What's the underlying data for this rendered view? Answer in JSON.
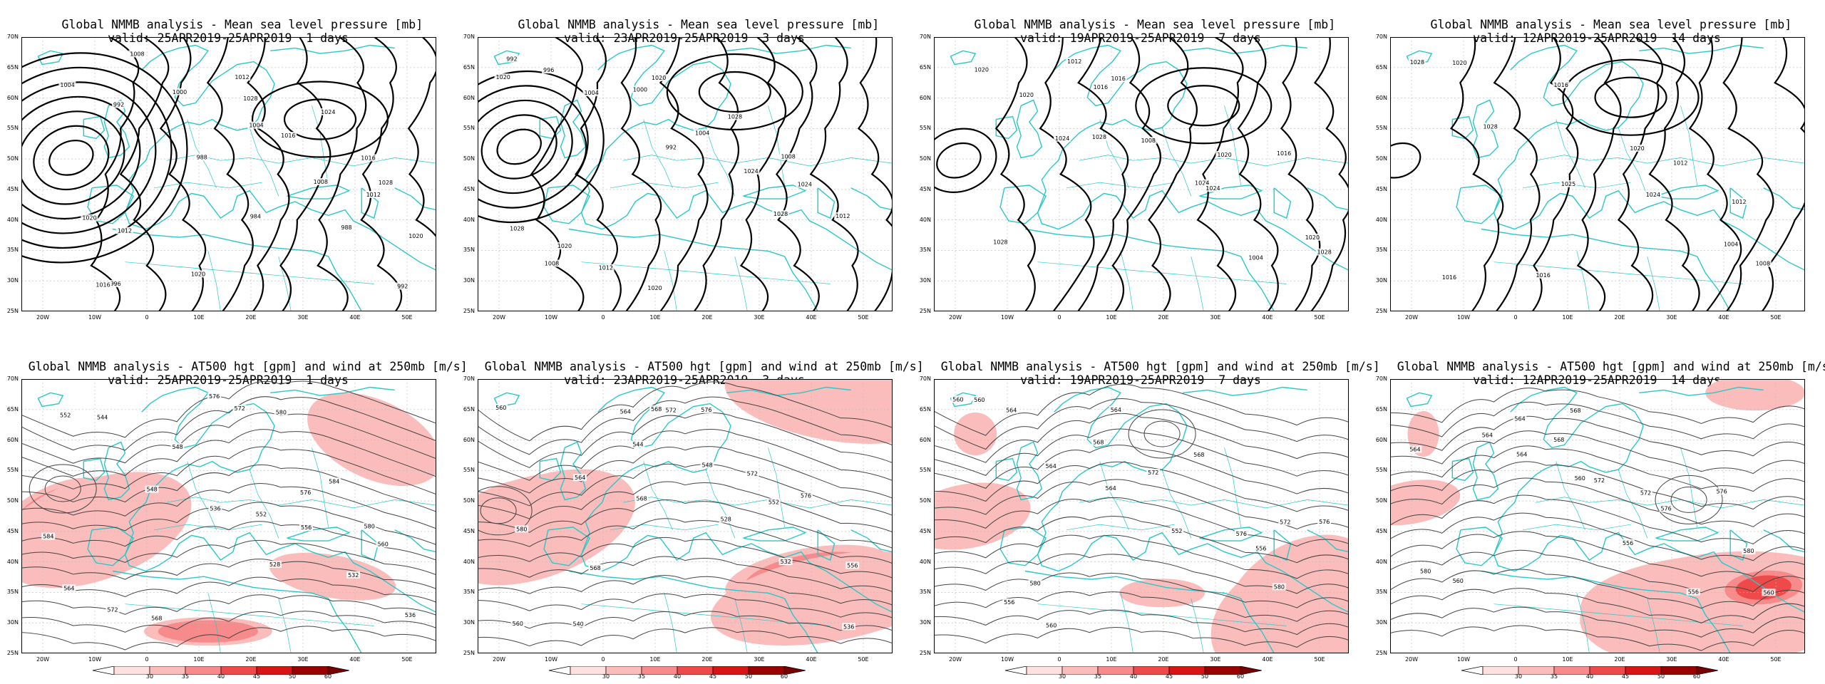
{
  "colors": {
    "coast": "#29c8c8",
    "contour_mslp": "#000000",
    "contour_hgt": "#444444",
    "grid": "#bbbbbb",
    "wind_shades": [
      "#fde0e0",
      "#fbbcbc",
      "#f78a8a",
      "#ef4a4a",
      "#d81515",
      "#990000"
    ]
  },
  "axes": {
    "lat_labels": [
      "70N",
      "65N",
      "60N",
      "55N",
      "50N",
      "45N",
      "40N",
      "35N",
      "30N",
      "25N"
    ],
    "lon_labels": [
      "20W",
      "10W",
      "0",
      "10E",
      "20E",
      "30E",
      "40E",
      "50E"
    ]
  },
  "top_row": [
    {
      "title": "Global NMMB analysis - Mean sea level pressure [mb]",
      "subtitle": "valid: 25APR2019-25APR2019  1 days",
      "contour_labels": [
        "1004",
        "992",
        "988",
        "984",
        "988",
        "992",
        "996",
        "1000",
        "1004",
        "1008",
        "1012",
        "1016",
        "1008",
        "1012",
        "1016",
        "1016",
        "1020",
        "1012",
        "1020",
        "1028",
        "1024",
        "1028",
        "1020"
      ]
    },
    {
      "title": "Global NMMB analysis - Mean sea level pressure [mb]",
      "subtitle": "valid: 23APR2019-25APR2019  3 days",
      "contour_labels": [
        "1020",
        "1004",
        "992",
        "1024",
        "1028",
        "992",
        "996",
        "1000",
        "1004",
        "1008",
        "1012",
        "1008",
        "1012",
        "1020",
        "1028",
        "1024",
        "1028",
        "1020",
        "1020"
      ]
    },
    {
      "title": "Global NMMB analysis - Mean sea level pressure [mb]",
      "subtitle": "valid: 19APR2019-25APR2019  7 days",
      "contour_labels": [
        "1020",
        "1024",
        "1028",
        "1024",
        "1004",
        "1028",
        "1020",
        "1016",
        "1008",
        "1024",
        "1020",
        "1028",
        "1012",
        "1016",
        "1020",
        "1016"
      ]
    },
    {
      "title": "Global NMMB analysis - Mean sea level pressure [mb]",
      "subtitle": "valid: 12APR2019-25APR2019  14 days",
      "contour_labels": [
        "1028",
        "1028",
        "1025",
        "1024",
        "1004",
        "1008",
        "1020",
        "1016",
        "1020",
        "1012",
        "1012",
        "1016",
        "1016"
      ]
    }
  ],
  "bottom_row": [
    {
      "title": "Global NMMB analysis - AT500 hgt [gpm] and wind at 250mb [m/s]",
      "subtitle": "valid: 25APR2019-25APR2019  1 days",
      "contour_labels": [
        "552",
        "548",
        "536",
        "528",
        "532",
        "536",
        "544",
        "548",
        "552",
        "556",
        "560",
        "564",
        "568",
        "572",
        "576",
        "580",
        "584",
        "572",
        "576",
        "580",
        "584"
      ]
    },
    {
      "title": "Global NMMB analysis - AT500 hgt [gpm] and wind at 250mb [m/s]",
      "subtitle": "valid: 23APR2019-25APR2019  3 days",
      "contour_labels": [
        "560",
        "564",
        "568",
        "528",
        "532",
        "536",
        "540",
        "544",
        "548",
        "552",
        "556",
        "560",
        "564",
        "568",
        "572",
        "576",
        "580",
        "568",
        "572",
        "576"
      ]
    },
    {
      "title": "Global NMMB analysis - AT500 hgt [gpm] and wind at 250mb [m/s]",
      "subtitle": "valid: 19APR2019-25APR2019  7 days",
      "contour_labels": [
        "560",
        "564",
        "564",
        "552",
        "556",
        "560",
        "564",
        "568",
        "572",
        "576",
        "580",
        "556",
        "560",
        "564",
        "568",
        "572",
        "576",
        "580"
      ]
    },
    {
      "title": "Global NMMB analysis - AT500 hgt [gpm] and wind at 250mb [m/s]",
      "subtitle": "valid: 12APR2019-25APR2019  14 days",
      "contour_labels": [
        "564",
        "564",
        "560",
        "556",
        "556",
        "560",
        "564",
        "568",
        "572",
        "576",
        "580",
        "560",
        "564",
        "568",
        "572",
        "576",
        "580"
      ]
    }
  ],
  "colorbar": {
    "ticks": [
      "30",
      "35",
      "40",
      "45",
      "50",
      "60"
    ]
  }
}
